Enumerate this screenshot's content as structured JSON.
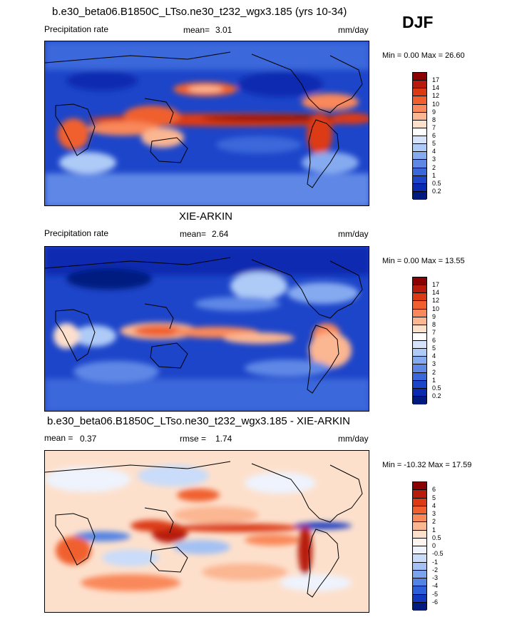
{
  "season": "DJF",
  "panels": [
    {
      "title": "b.e30_beta06.B1850C_LTso.ne30_t232_wgx3.185 (yrs 10-34)",
      "left_label": "Precipitation rate",
      "stat_label": "mean=",
      "stat_value": "3.01",
      "stat2_label": "",
      "stat2_value": "",
      "units": "mm/day",
      "minmax": "Min =   0.00 Max =  26.60",
      "colorbar_levels": [
        "17",
        "14",
        "12",
        "10",
        "9",
        "8",
        "7",
        "6",
        "5",
        "4",
        "3",
        "2",
        "1",
        "0.5",
        "0.2"
      ],
      "colorbar_colors": [
        "#8b0000",
        "#b81a0c",
        "#dc3a14",
        "#f0602e",
        "#f9885a",
        "#fbb692",
        "#fde0cc",
        "#ffffff",
        "#d6e4fb",
        "#aecaf7",
        "#86aaf0",
        "#5f88e6",
        "#3a67da",
        "#1d45c9",
        "#0a2bb0",
        "#001a80"
      ]
    },
    {
      "title": "XIE-ARKIN",
      "left_label": "Precipitation rate",
      "stat_label": "mean=",
      "stat_value": "2.64",
      "stat2_label": "",
      "stat2_value": "",
      "units": "mm/day",
      "minmax": "Min =   0.00 Max =  13.55",
      "colorbar_levels": [
        "17",
        "14",
        "12",
        "10",
        "9",
        "8",
        "7",
        "6",
        "5",
        "4",
        "3",
        "2",
        "1",
        "0.5",
        "0.2"
      ],
      "colorbar_colors": [
        "#8b0000",
        "#b81a0c",
        "#dc3a14",
        "#f0602e",
        "#f9885a",
        "#fbb692",
        "#fde0cc",
        "#ffffff",
        "#d6e4fb",
        "#aecaf7",
        "#86aaf0",
        "#5f88e6",
        "#3a67da",
        "#1d45c9",
        "#0a2bb0",
        "#001a80"
      ]
    },
    {
      "title": "b.e30_beta06.B1850C_LTso.ne30_t232_wgx3.185 - XIE-ARKIN",
      "left_label": "mean =",
      "stat_label": "0.37",
      "stat_value": "",
      "stat2_label": "rmse =",
      "stat2_value": "1.74",
      "units": "mm/day",
      "minmax": "Min = -10.32 Max =  17.59",
      "colorbar_levels": [
        "6",
        "5",
        "4",
        "3",
        "2",
        "1",
        "0.5",
        "0",
        "-0.5",
        "-1",
        "-2",
        "-3",
        "-4",
        "-5",
        "-6"
      ],
      "colorbar_colors": [
        "#8b0000",
        "#b81a0c",
        "#dc3a14",
        "#f0602e",
        "#f9885a",
        "#fbb692",
        "#fde0cc",
        "#fff5ee",
        "#eef3fd",
        "#c9dcf9",
        "#a3c1f4",
        "#7ba3ee",
        "#5383e4",
        "#2d5fd8",
        "#1238c0",
        "#001a80"
      ]
    }
  ]
}
